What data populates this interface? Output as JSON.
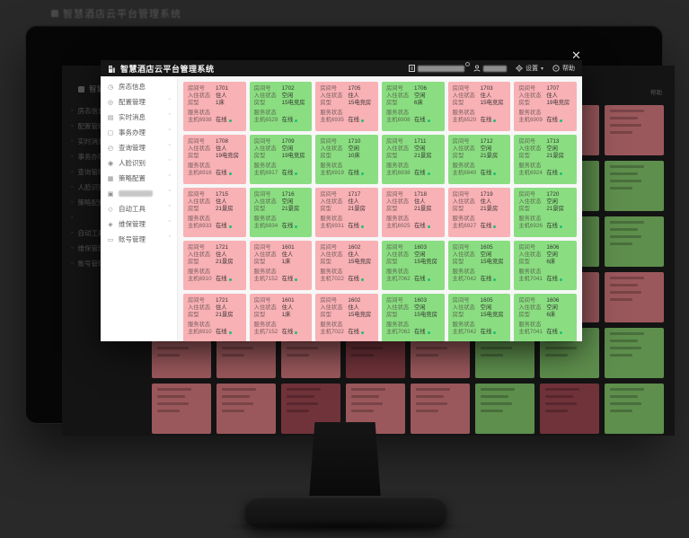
{
  "page": {
    "bg_title": "智慧酒店云平台管理系统"
  },
  "lightbox": {
    "close": "✕"
  },
  "colors": {
    "occupied_card": "#f8b1b5",
    "vacant_card": "#8ade81",
    "online_dot": "#1fbf75",
    "dim_pink": "#9b585c",
    "dim_green": "#5e8f4d",
    "dim_red": "#71333a"
  },
  "modal": {
    "header": {
      "title": "智慧酒店云平台管理系统",
      "settings": "设置",
      "help": "帮助",
      "caret": "▾"
    },
    "sidebar": {
      "items": [
        {
          "key": "room-status",
          "label": "房态信息",
          "icon": "◷",
          "caret": false,
          "redacted": false
        },
        {
          "key": "config",
          "label": "配置管理",
          "icon": "◎",
          "caret": true,
          "redacted": false
        },
        {
          "key": "realtime-message",
          "label": "实时消息",
          "icon": "▤",
          "caret": true,
          "redacted": false
        },
        {
          "key": "business",
          "label": "事务办理",
          "icon": "▢",
          "caret": true,
          "redacted": false
        },
        {
          "key": "query",
          "label": "查询管理",
          "icon": "◴",
          "caret": true,
          "redacted": false
        },
        {
          "key": "face-recognition",
          "label": "人脸识别",
          "icon": "◉",
          "caret": true,
          "redacted": false
        },
        {
          "key": "policy-config",
          "label": "策略配置",
          "icon": "▦",
          "caret": true,
          "redacted": false
        },
        {
          "key": "redacted",
          "label": "",
          "icon": "▣",
          "caret": true,
          "redacted": true
        },
        {
          "key": "auto-tools",
          "label": "自动工具",
          "icon": "◇",
          "caret": true,
          "redacted": false
        },
        {
          "key": "maintenance",
          "label": "维保管理",
          "icon": "◈",
          "caret": true,
          "redacted": false
        },
        {
          "key": "account",
          "label": "账号管理",
          "icon": "▭",
          "caret": true,
          "redacted": false
        }
      ]
    },
    "card_labels": {
      "room": "房间号",
      "occupancy": "入住状态",
      "type": "房型",
      "service": "服务状态",
      "online": "在线"
    },
    "rooms": [
      {
        "no": "1701",
        "state": "occupied",
        "occupancy": "住人",
        "type": "1床",
        "host": "主机6938",
        "online": "在线"
      },
      {
        "no": "1702",
        "state": "vacant",
        "occupancy": "空闲",
        "type": "15电竞房",
        "host": "主机6529",
        "online": "在线"
      },
      {
        "no": "1705",
        "state": "occupied",
        "occupancy": "住人",
        "type": "15电竞房",
        "host": "主机6935",
        "online": "在线"
      },
      {
        "no": "1706",
        "state": "vacant",
        "occupancy": "空闲",
        "type": "6床",
        "host": "主机6908",
        "online": "在线"
      },
      {
        "no": "1703",
        "state": "occupied",
        "occupancy": "住人",
        "type": "15电竞房",
        "host": "主机6520",
        "online": "在线"
      },
      {
        "no": "1707",
        "state": "occupied",
        "occupancy": "住人",
        "type": "19电竞房",
        "host": "主机6909",
        "online": "在线"
      },
      {
        "no": "1708",
        "state": "occupied",
        "occupancy": "住人",
        "type": "19电竞房",
        "host": "主机6916",
        "online": "在线"
      },
      {
        "no": "1709",
        "state": "vacant",
        "occupancy": "空闲",
        "type": "19电竞房",
        "host": "主机6917",
        "online": "在线"
      },
      {
        "no": "1710",
        "state": "vacant",
        "occupancy": "空闲",
        "type": "10床",
        "host": "主机6919",
        "online": "在线"
      },
      {
        "no": "1711",
        "state": "vacant",
        "occupancy": "空闲",
        "type": "21景房",
        "host": "主机6938",
        "online": "在线"
      },
      {
        "no": "1712",
        "state": "vacant",
        "occupancy": "空闲",
        "type": "21景房",
        "host": "主机6940",
        "online": "在线"
      },
      {
        "no": "1713",
        "state": "vacant",
        "occupancy": "空闲",
        "type": "21景房",
        "host": "主机6924",
        "online": "在线"
      },
      {
        "no": "1715",
        "state": "occupied",
        "occupancy": "住人",
        "type": "21景房",
        "host": "主机6933",
        "online": "在线"
      },
      {
        "no": "1716",
        "state": "vacant",
        "occupancy": "空闲",
        "type": "21景房",
        "host": "主机6934",
        "online": "在线"
      },
      {
        "no": "1717",
        "state": "occupied",
        "occupancy": "住人",
        "type": "21景房",
        "host": "主机6931",
        "online": "在线"
      },
      {
        "no": "1718",
        "state": "occupied",
        "occupancy": "住人",
        "type": "21景房",
        "host": "主机6925",
        "online": "在线"
      },
      {
        "no": "1719",
        "state": "occupied",
        "occupancy": "住人",
        "type": "21景房",
        "host": "主机6927",
        "online": "在线"
      },
      {
        "no": "1720",
        "state": "vacant",
        "occupancy": "空闲",
        "type": "21景房",
        "host": "主机6926",
        "online": "在线"
      },
      {
        "no": "1721",
        "state": "occupied",
        "occupancy": "住人",
        "type": "21景房",
        "host": "主机6910",
        "online": "在线"
      },
      {
        "no": "1601",
        "state": "occupied",
        "occupancy": "住人",
        "type": "1床",
        "host": "主机7152",
        "online": "在线"
      },
      {
        "no": "1602",
        "state": "occupied",
        "occupancy": "住人",
        "type": "15电竞房",
        "host": "主机7022",
        "online": "在线"
      },
      {
        "no": "1603",
        "state": "vacant",
        "occupancy": "空闲",
        "type": "15电竞房",
        "host": "主机7062",
        "online": "在线"
      },
      {
        "no": "1605",
        "state": "vacant",
        "occupancy": "空闲",
        "type": "15电竞房",
        "host": "主机7042",
        "online": "在线"
      },
      {
        "no": "1606",
        "state": "vacant",
        "occupancy": "空闲",
        "type": "6床",
        "host": "主机7041",
        "online": "在线"
      },
      {
        "no": "1721",
        "state": "occupied",
        "occupancy": "住人",
        "type": "21景房",
        "host": "主机6910",
        "online": "在线"
      },
      {
        "no": "1601",
        "state": "occupied",
        "occupancy": "住人",
        "type": "1床",
        "host": "主机7152",
        "online": "在线"
      },
      {
        "no": "1602",
        "state": "occupied",
        "occupancy": "住人",
        "type": "15电竞房",
        "host": "主机7022",
        "online": "在线"
      },
      {
        "no": "1603",
        "state": "vacant",
        "occupancy": "空闲",
        "type": "15电竞房",
        "host": "主机7062",
        "online": "在线"
      },
      {
        "no": "1605",
        "state": "vacant",
        "occupancy": "空闲",
        "type": "15电竞房",
        "host": "主机7042",
        "online": "在线"
      },
      {
        "no": "1606",
        "state": "vacant",
        "occupancy": "空闲",
        "type": "6床",
        "host": "主机7041",
        "online": "在线"
      }
    ]
  },
  "bg_app": {
    "title": "智慧酒店云平台管理系统",
    "help": "帮助",
    "sidebar_items": [
      "房态信息",
      "配置管理",
      "实时消息",
      "事务办理",
      "查询管理",
      "人脸识别",
      "策略配置",
      "",
      "自动工具",
      "维保管理",
      "账号管理"
    ],
    "grid": [
      [
        "p",
        "g",
        "p",
        "g",
        "p",
        "p",
        "p",
        "p"
      ],
      [
        "p",
        "g",
        "g",
        "g",
        "g",
        "g",
        "g",
        "g"
      ],
      [
        "p",
        "g",
        "p",
        "p",
        "p",
        "g",
        "g",
        "g"
      ],
      [
        "p",
        "p",
        "p",
        "g",
        "g",
        "g",
        "p",
        "p"
      ],
      [
        "p",
        "p",
        "p",
        "r",
        "p",
        "g",
        "g",
        "g"
      ],
      [
        "p",
        "p",
        "r",
        "p",
        "p",
        "g",
        "r",
        "g"
      ]
    ]
  }
}
